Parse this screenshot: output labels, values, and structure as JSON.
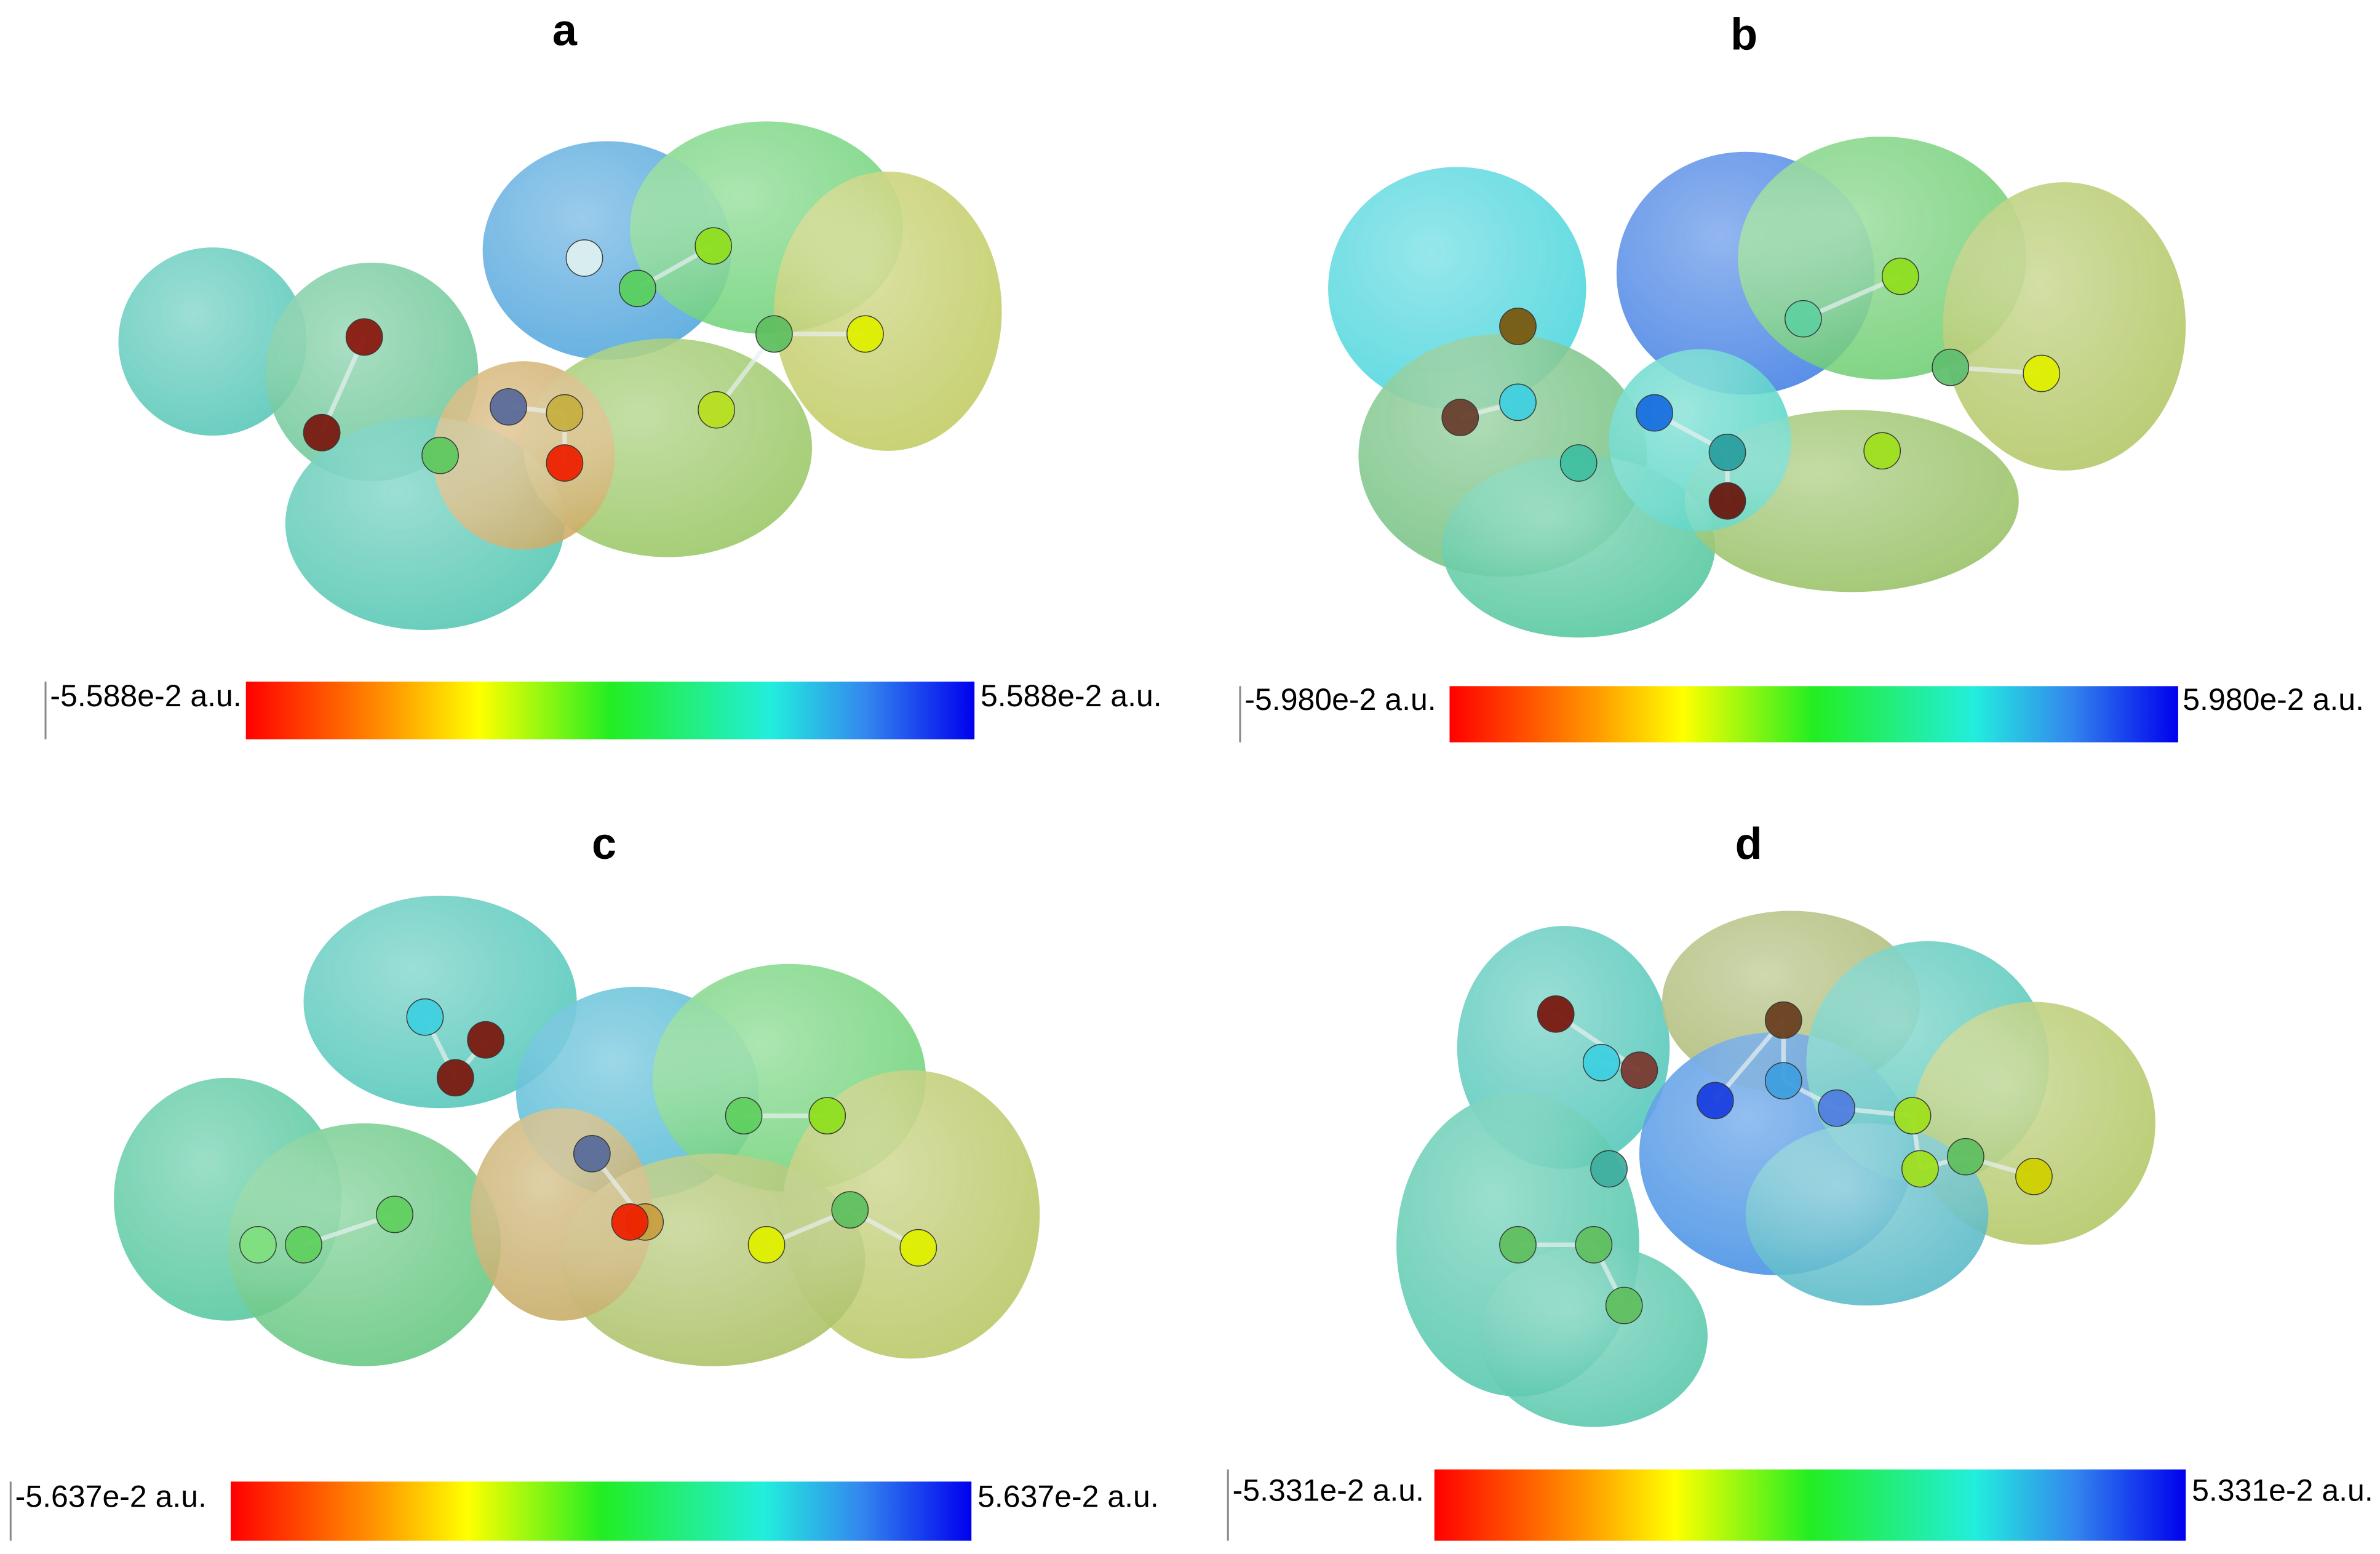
{
  "panels": [
    {
      "label": "a",
      "min_label": "-5.588e-2 a.u.",
      "max_label": "5.588e-2 a.u."
    },
    {
      "label": "b",
      "min_label": "-5.980e-2 a.u.",
      "max_label": "5.980e-2  a.u."
    },
    {
      "label": "c",
      "min_label": "-5.637e-2 a.u.",
      "max_label": "5.637e-2 a.u."
    },
    {
      "label": "d",
      "min_label": "-5.331e-2 a.u.",
      "max_label": "5.331e-2 a.u."
    }
  ]
}
